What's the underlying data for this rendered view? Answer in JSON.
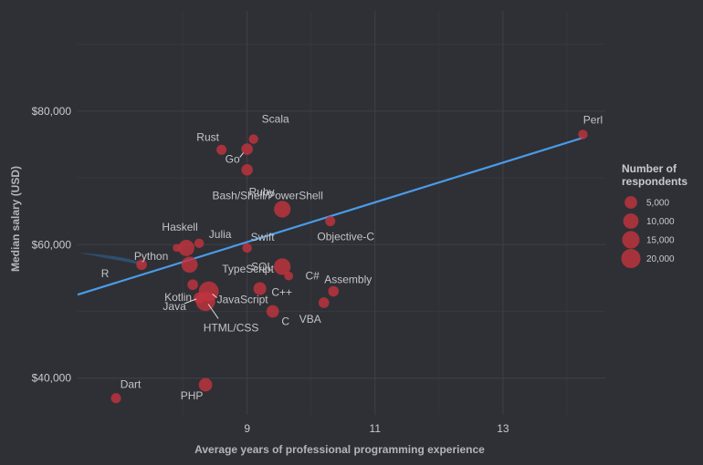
{
  "chart_data": {
    "type": "scatter",
    "title": "",
    "xlabel": "Average years of professional programming experience",
    "ylabel": "Median salary (USD)",
    "xlim": [
      6.35,
      14.6
    ],
    "ylim": [
      34500,
      95000
    ],
    "x_ticks": [
      9,
      11,
      13
    ],
    "y_ticks": [
      {
        "value": 40000,
        "label": "$40,000"
      },
      {
        "value": 60000,
        "label": "$60,000"
      },
      {
        "value": 80000,
        "label": "$80,000"
      }
    ],
    "grid": true,
    "colors": {
      "background": "#2e3035",
      "grid_major": "#3f4147",
      "grid_minor": "#36383d",
      "point": "#c1333e",
      "trend_line": "#4a9be8",
      "band": "#2f5478",
      "label": "#c3c4c7",
      "leader": "#e0e0e0"
    },
    "trend": {
      "method": "linear fit",
      "x": [
        6.35,
        14.25
      ],
      "y": [
        52500,
        76000
      ],
      "band_lower": [
        46200,
        59800
      ],
      "band_upper": [
        58800,
        92200
      ]
    },
    "points": [
      {
        "label": "Perl",
        "x": 14.25,
        "y": 76500,
        "n": 1500
      },
      {
        "label": "Scala",
        "x": 9.1,
        "y": 75800,
        "n": 1500
      },
      {
        "label": "Rust",
        "x": 8.6,
        "y": 74200,
        "n": 2000
      },
      {
        "label": "Go",
        "x": 9.0,
        "y": 74300,
        "n": 3500
      },
      {
        "label": "Ruby",
        "x": 9.0,
        "y": 71200,
        "n": 3500
      },
      {
        "label": "Bash/Shell/PowerShell",
        "x": 9.55,
        "y": 65300,
        "n": 13000
      },
      {
        "label": "Objective-C",
        "x": 10.3,
        "y": 63500,
        "n": 2000
      },
      {
        "label": "Haskell",
        "x": 8.05,
        "y": 59500,
        "n": 12000
      },
      {
        "label": "Julia",
        "x": 8.25,
        "y": 60200,
        "n": 1500
      },
      {
        "label": "Swift",
        "x": 9.0,
        "y": 59500,
        "n": 1500
      },
      {
        "label": "Python",
        "x": 7.9,
        "y": 59500,
        "n": 500
      },
      {
        "label": "R",
        "x": 7.35,
        "y": 57000,
        "n": 2500
      },
      {
        "label": "TypeScript",
        "x": 8.1,
        "y": 57000,
        "n": 12000
      },
      {
        "label": "SQL",
        "x": 9.55,
        "y": 56700,
        "n": 13000
      },
      {
        "label": "C#",
        "x": 9.65,
        "y": 55300,
        "n": 1000
      },
      {
        "label": "Assembly",
        "x": 10.35,
        "y": 53000,
        "n": 2500
      },
      {
        "label": "Kotlin",
        "x": 8.15,
        "y": 54000,
        "n": 2500
      },
      {
        "label": "C++",
        "x": 9.2,
        "y": 53400,
        "n": 5500
      },
      {
        "label": "JavaScript",
        "x": 8.4,
        "y": 53000,
        "n": 22000
      },
      {
        "label": "Java",
        "x": 8.25,
        "y": 52000,
        "n": 3000
      },
      {
        "label": "HTML/CSS",
        "x": 8.35,
        "y": 51500,
        "n": 20000
      },
      {
        "label": "VBA",
        "x": 10.2,
        "y": 51300,
        "n": 2500
      },
      {
        "label": "C",
        "x": 9.4,
        "y": 50000,
        "n": 5000
      },
      {
        "label": "Dart",
        "x": 6.95,
        "y": 37000,
        "n": 2000
      },
      {
        "label": "PHP",
        "x": 8.35,
        "y": 39000,
        "n": 6500
      }
    ],
    "legend": {
      "title": [
        "Number of",
        "respondents"
      ],
      "placement": "right",
      "items": [
        {
          "value": 5000,
          "label": "5,000"
        },
        {
          "value": 10000,
          "label": "10,000"
        },
        {
          "value": 15000,
          "label": "15,000"
        },
        {
          "value": 20000,
          "label": "20,000"
        }
      ]
    }
  }
}
